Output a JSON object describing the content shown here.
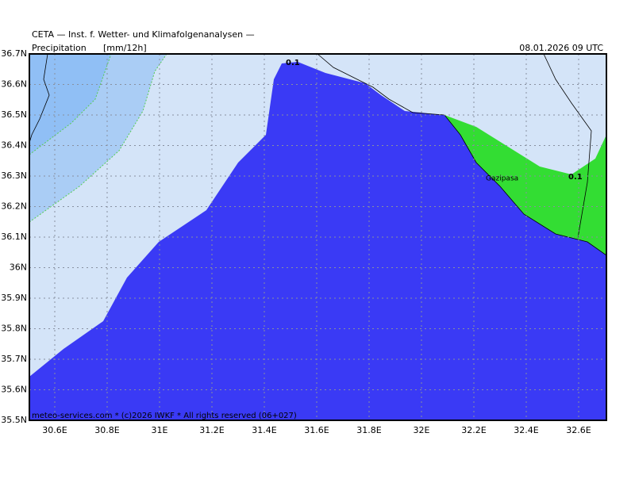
{
  "header": {
    "title": "CETA — Inst. f. Wetter- und Klimafolgenanalysen —",
    "variable": "Precipitation",
    "unit": "[mm/12h]",
    "valid_time": "08.01.2026 09 UTC"
  },
  "map": {
    "lon_labels": [
      "30.6E",
      "30.8E",
      "31E",
      "31.2E",
      "31.4E",
      "31.6E",
      "31.8E",
      "32E",
      "32.2E",
      "32.4E",
      "32.6E"
    ],
    "lat_labels": [
      "36.7N",
      "36.6N",
      "36.5N",
      "36.4N",
      "36.3N",
      "36.2N",
      "36.1N",
      "36N",
      "35.9N",
      "35.8N",
      "35.7N",
      "35.6N",
      "35.5N"
    ],
    "contour_labels": [
      "0.1",
      "0.1"
    ],
    "place_labels": [
      "Gazipasa"
    ]
  },
  "footer": "meteo-services.com * (c)2026 IWKF * All rights reserved (06+027)"
}
